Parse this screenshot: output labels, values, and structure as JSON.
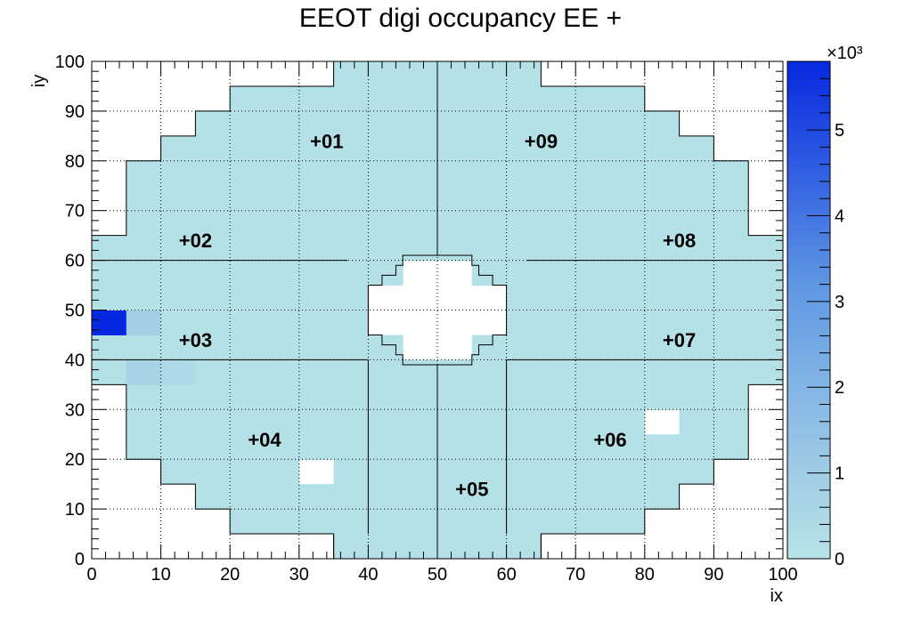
{
  "chart_data": {
    "type": "heatmap",
    "title": "EEOT digi occupancy EE +",
    "xlabel": "ix",
    "ylabel": "iy",
    "xlim": [
      0,
      100
    ],
    "ylim": [
      0,
      100
    ],
    "x_ticks": [
      "0",
      "10",
      "20",
      "30",
      "40",
      "50",
      "60",
      "70",
      "80",
      "90",
      "100"
    ],
    "y_ticks": [
      "0",
      "10",
      "20",
      "30",
      "40",
      "50",
      "60",
      "70",
      "80",
      "90",
      "100"
    ],
    "grid": true,
    "cell_size": 5,
    "baseline_value": 150,
    "colorbar": {
      "min": 0,
      "max": 5.8,
      "multiplier": "×10³",
      "ticks": [
        "0",
        "1",
        "2",
        "3",
        "4",
        "5"
      ],
      "color_low": "#b6e4e6",
      "color_mid": "#9cc9e6",
      "color_high": "#0628e0"
    },
    "hot_cells": [
      {
        "x": 0,
        "y": 45,
        "value": 5800
      },
      {
        "x": 5,
        "y": 45,
        "value": 900
      },
      {
        "x": 5,
        "y": 35,
        "value": 700
      },
      {
        "x": 10,
        "y": 35,
        "value": 450
      }
    ],
    "empty_cells": [
      {
        "x": 30,
        "y": 15
      },
      {
        "x": 80,
        "y": 25
      }
    ],
    "sectors": [
      {
        "label": "+01",
        "x": 34,
        "y": 84
      },
      {
        "label": "+02",
        "x": 15,
        "y": 64
      },
      {
        "label": "+03",
        "x": 15,
        "y": 44
      },
      {
        "label": "+04",
        "x": 25,
        "y": 24
      },
      {
        "label": "+05",
        "x": 55,
        "y": 14
      },
      {
        "label": "+06",
        "x": 75,
        "y": 24
      },
      {
        "label": "+07",
        "x": 85,
        "y": 44
      },
      {
        "label": "+08",
        "x": 85,
        "y": 64
      },
      {
        "label": "+09",
        "x": 65,
        "y": 84
      }
    ],
    "detector_row_extents": [
      [
        0,
        5,
        35,
        65
      ],
      [
        5,
        10,
        20,
        80
      ],
      [
        10,
        15,
        15,
        85
      ],
      [
        15,
        20,
        10,
        90
      ],
      [
        20,
        25,
        5,
        95
      ],
      [
        25,
        35,
        5,
        95
      ],
      [
        35,
        40,
        0,
        100
      ],
      [
        40,
        60,
        0,
        100
      ],
      [
        60,
        65,
        0,
        100
      ],
      [
        65,
        75,
        5,
        95
      ],
      [
        75,
        80,
        5,
        95
      ],
      [
        80,
        85,
        10,
        90
      ],
      [
        85,
        90,
        15,
        85
      ],
      [
        90,
        95,
        20,
        80
      ],
      [
        95,
        100,
        35,
        65
      ]
    ],
    "inner_hole": [
      [
        40,
        45,
        45,
        55
      ],
      [
        45,
        55,
        40,
        60
      ],
      [
        55,
        60,
        45,
        55
      ]
    ]
  }
}
